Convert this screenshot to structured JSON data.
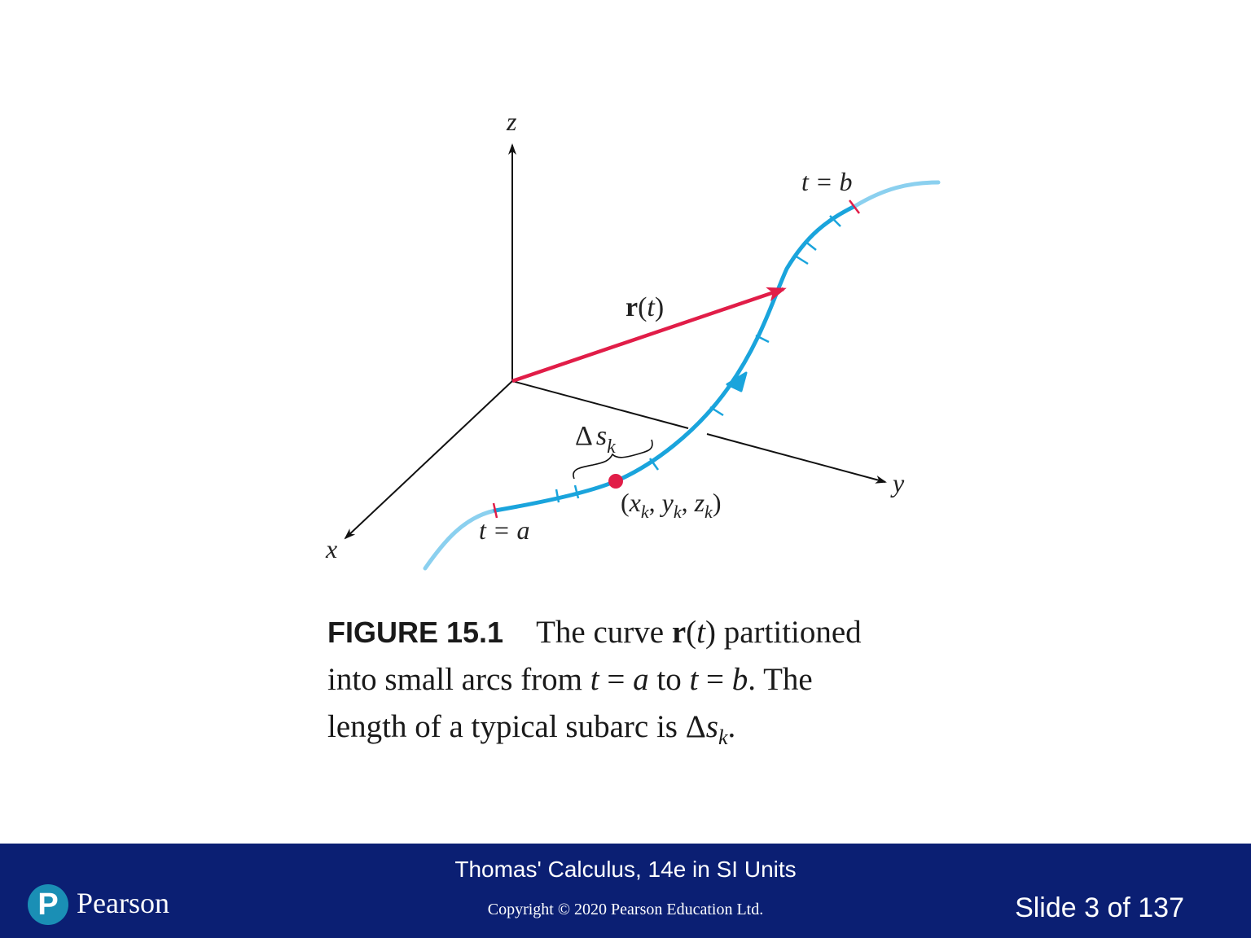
{
  "figure": {
    "axis_labels": {
      "x": "x",
      "y": "y",
      "z": "z"
    },
    "vector_label": {
      "bold": "r",
      "open": "(",
      "var": "t",
      "close": ")"
    },
    "t_start_label": "t = a",
    "t_end_label": "t = b",
    "arc_label": {
      "delta": "Δ",
      "var": "s",
      "sub": "k"
    },
    "point_label": {
      "open": "(",
      "x": "x",
      "y": "y",
      "z": "z",
      "sub": "k",
      "comma": ", ",
      "close": ")"
    },
    "colors": {
      "curve": "#1aa4dc",
      "curve_light": "#8bd0ef",
      "vector": "#e11d48",
      "point": "#e11d48",
      "axes": "#111111"
    }
  },
  "caption": {
    "figure_label": "FIGURE 15.1",
    "line1_a": "The curve ",
    "line1_bold": "r",
    "line1_b": "(",
    "line1_t": "t",
    "line1_c": ") partitioned",
    "line2_a": "into small arcs from ",
    "line2_t1": "t",
    "line2_eq1": " = ",
    "line2_a_var": "a",
    "line2_to": " to ",
    "line2_t2": "t",
    "line2_eq2": " = ",
    "line2_b_var": "b",
    "line2_end": ". The",
    "line3_a": "length of a typical subarc is ",
    "line3_delta": "Δ",
    "line3_s": "s",
    "line3_sub": "k",
    "line3_end": "."
  },
  "footer": {
    "course": "Thomas' Calculus, 14e in SI Units",
    "copyright": "Copyright © 2020 Pearson Education Ltd.",
    "slide": "Slide 3 of 137",
    "logo_mark": "P",
    "logo_text": "Pearson"
  }
}
